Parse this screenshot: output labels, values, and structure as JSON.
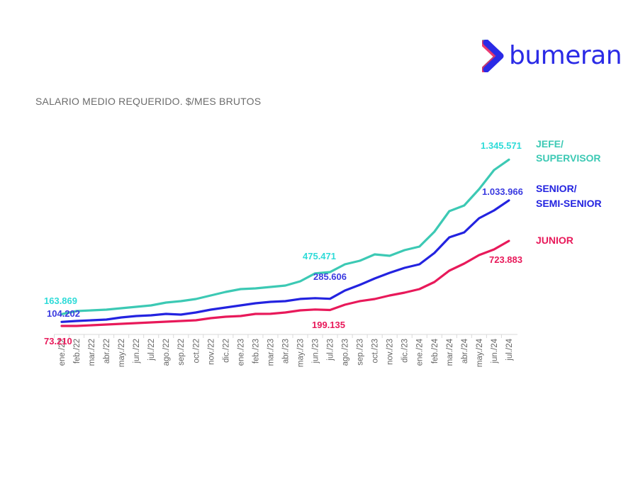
{
  "brand": {
    "name": "bumeran",
    "logo_colors": [
      "#e8195a",
      "#2ad4d4",
      "#2a2ae6"
    ]
  },
  "chart_data": {
    "type": "line",
    "title": "SALARIO MEDIO REQUERIDO. $/MES BRUTOS",
    "xlabel": "",
    "ylabel": "",
    "grid": false,
    "legend_placement": "right",
    "ylim": [
      0,
      1400000
    ],
    "categories": [
      "ene./22",
      "feb./22",
      "mar./22",
      "abr./22",
      "may./22",
      "jun./22",
      "jul./22",
      "ago./22",
      "sep./22",
      "oct./22",
      "nov./22",
      "dic./22",
      "ene./23",
      "feb./23",
      "mar./23",
      "abr./23",
      "may./23",
      "jun./23",
      "jul./23",
      "ago./23",
      "sep./23",
      "oct./23",
      "nov./23",
      "dic./23",
      "ene./24",
      "feb./24",
      "mar./24",
      "abr./24",
      "may./24",
      "jun./24",
      "jul./24"
    ],
    "series": [
      {
        "name": "JEFE/ SUPERVISOR",
        "name_lines": [
          "JEFE/",
          "SUPERVISOR"
        ],
        "color": "#3cc9b4",
        "label_color": "#2edbd8",
        "values": [
          163869,
          187000,
          192500,
          197900,
          208700,
          219600,
          230400,
          252100,
          263000,
          279200,
          306300,
          333500,
          355100,
          360600,
          371400,
          382300,
          414800,
          475471,
          485300,
          544900,
          572000,
          620800,
          610000,
          653400,
          680500,
          794300,
          951600,
          994900,
          1119600,
          1266000,
          1345571
        ],
        "labels": [
          {
            "index": 0,
            "text": "163.869"
          },
          {
            "index": 17,
            "text": "475.471"
          },
          {
            "index": 30,
            "text": "1.345.571"
          }
        ]
      },
      {
        "name": "SENIOR/ SEMI-SENIOR",
        "name_lines": [
          "SENIOR/",
          "SEMI-SENIOR"
        ],
        "color": "#2323e0",
        "label_color": "#3a3ae0",
        "values": [
          104202,
          111200,
          116600,
          122000,
          138300,
          149100,
          154500,
          165400,
          159900,
          176200,
          197900,
          214200,
          230400,
          246700,
          257500,
          263000,
          280000,
          285606,
          281000,
          344300,
          387700,
          436500,
          479800,
          517800,
          544900,
          631700,
          751000,
          788900,
          897300,
          957000,
          1033966
        ],
        "labels": [
          {
            "index": 0,
            "text": "104.202"
          },
          {
            "index": 17,
            "text": "285.606"
          },
          {
            "index": 30,
            "text": "1.033.966"
          }
        ]
      },
      {
        "name": "JUNIOR",
        "name_lines": [
          "JUNIOR"
        ],
        "color": "#e8195a",
        "label_color": "#e8195a",
        "values": [
          73210,
          73200,
          78600,
          84000,
          89500,
          94900,
          100300,
          105700,
          111200,
          116600,
          132800,
          143700,
          149100,
          165400,
          166000,
          176200,
          192500,
          199135,
          195000,
          235900,
          263000,
          279200,
          306300,
          328000,
          355100,
          409400,
          496100,
          550300,
          615400,
          658800,
          723883
        ],
        "labels": [
          {
            "index": 0,
            "text": "73.210"
          },
          {
            "index": 17,
            "text": "199.135"
          },
          {
            "index": 30,
            "text": "723.883"
          }
        ]
      }
    ]
  }
}
